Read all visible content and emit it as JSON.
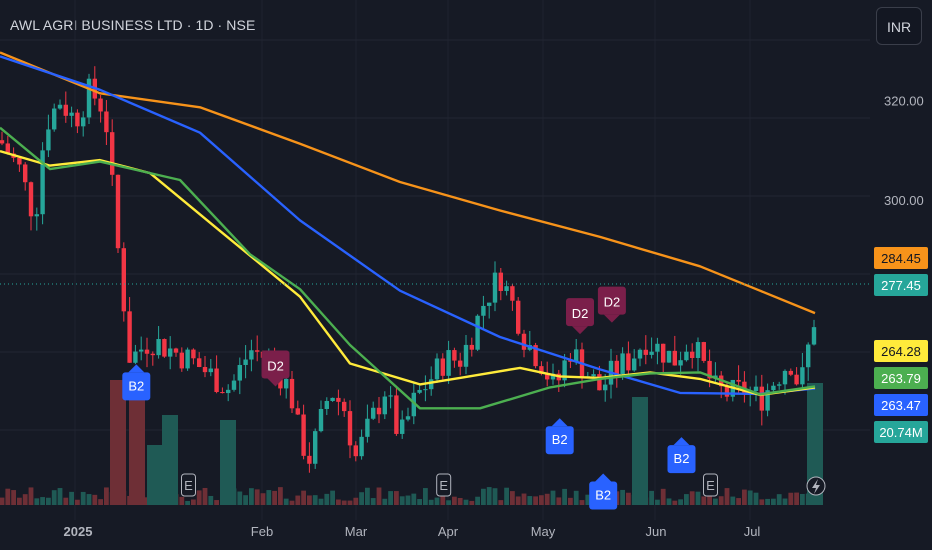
{
  "header": {
    "title": "AWL AGRI BUSINESS LTD · 1D · NSE",
    "currency_button": "INR"
  },
  "colors": {
    "background": "#161a25",
    "up": "#26a69a",
    "down": "#f23645",
    "vol_up": "#1f5a55",
    "vol_down": "#6e2f36",
    "ma_orange": "#f7931a",
    "ma_blue": "#2962ff",
    "ma_yellow": "#ffeb3b",
    "ma_green": "#4caf50",
    "b2_badge": "#2962ff",
    "d2_badge": "#7b1f4a"
  },
  "events": {
    "earnings_label": "E",
    "flash_icon": "lightning-icon"
  },
  "chart_data": {
    "type": "candlestick",
    "y_axis": {
      "ticks": [
        "320.00",
        "300.00"
      ],
      "ylim": [
        238.8,
        332.1
      ]
    },
    "x_axis": {
      "ticks": [
        "2025",
        "Feb",
        "Mar",
        "Apr",
        "May",
        "Jun",
        "Jul"
      ]
    },
    "grid": true,
    "price_labels": [
      {
        "series": "ma_orange",
        "value": "284.45"
      },
      {
        "series": "last_price",
        "value": "277.45"
      },
      {
        "series": "ma_yellow",
        "value": "264.28"
      },
      {
        "series": "ma_green",
        "value": "263.79"
      },
      {
        "series": "ma_blue",
        "value": "263.47"
      },
      {
        "series": "volume",
        "value": "20.74M"
      }
    ],
    "signals": [
      {
        "label": "B2",
        "type": "buy",
        "date": "2025-01-14",
        "price": 262.8
      },
      {
        "label": "D2",
        "type": "sell",
        "date": "2025-03-03",
        "price": 266.8
      },
      {
        "label": "B2",
        "type": "buy",
        "date": "2025-06-09",
        "price": 252.0
      },
      {
        "label": "D2",
        "type": "sell",
        "date": "2025-06-16",
        "price": 277.3
      },
      {
        "label": "D2",
        "type": "sell",
        "date": "2025-06-27",
        "price": 279.6
      },
      {
        "label": "B2",
        "type": "buy",
        "date": "2025-06-24",
        "price": 240.9
      },
      {
        "label": "B2",
        "type": "buy",
        "date": "2025-07-21",
        "price": 248.2
      }
    ],
    "earnings": [
      "2025-02-01",
      "2025-04-30",
      "2025-07-31"
    ],
    "ma_series": [
      {
        "key": "ma_orange",
        "values": [
          [
            0,
            329.6
          ],
          [
            100,
            321.4
          ],
          [
            200,
            318.6
          ],
          [
            300,
            311.3
          ],
          [
            400,
            303.6
          ],
          [
            500,
            297.9
          ],
          [
            600,
            292.6
          ],
          [
            700,
            286.7
          ],
          [
            760,
            281.8
          ],
          [
            815,
            277.3
          ]
        ]
      },
      {
        "key": "ma_blue",
        "values": [
          [
            0,
            328.8
          ],
          [
            100,
            322.1
          ],
          [
            200,
            313.5
          ],
          [
            300,
            295.9
          ],
          [
            400,
            281.8
          ],
          [
            500,
            272.5
          ],
          [
            600,
            266.0
          ],
          [
            680,
            261.3
          ],
          [
            760,
            261.1
          ],
          [
            815,
            262.2
          ]
        ]
      },
      {
        "key": "ma_yellow",
        "values": [
          [
            0,
            309.8
          ],
          [
            50,
            306.9
          ],
          [
            100,
            308.0
          ],
          [
            150,
            305.4
          ],
          [
            220,
            293.8
          ],
          [
            300,
            280.6
          ],
          [
            350,
            267.2
          ],
          [
            420,
            263.0
          ],
          [
            460,
            264.3
          ],
          [
            520,
            266.3
          ],
          [
            560,
            264.6
          ],
          [
            600,
            264.3
          ],
          [
            650,
            265.4
          ],
          [
            700,
            264.1
          ],
          [
            760,
            260.9
          ],
          [
            815,
            262.4
          ]
        ]
      },
      {
        "key": "ma_green",
        "values": [
          [
            0,
            314.5
          ],
          [
            50,
            306.2
          ],
          [
            100,
            307.7
          ],
          [
            180,
            304.0
          ],
          [
            250,
            289.1
          ],
          [
            300,
            282.1
          ],
          [
            350,
            270.9
          ],
          [
            420,
            258.2
          ],
          [
            480,
            258.2
          ],
          [
            550,
            262.4
          ],
          [
            600,
            264.1
          ],
          [
            650,
            265.2
          ],
          [
            700,
            265.4
          ],
          [
            760,
            261.0
          ],
          [
            815,
            262.6
          ]
        ]
      }
    ]
  }
}
